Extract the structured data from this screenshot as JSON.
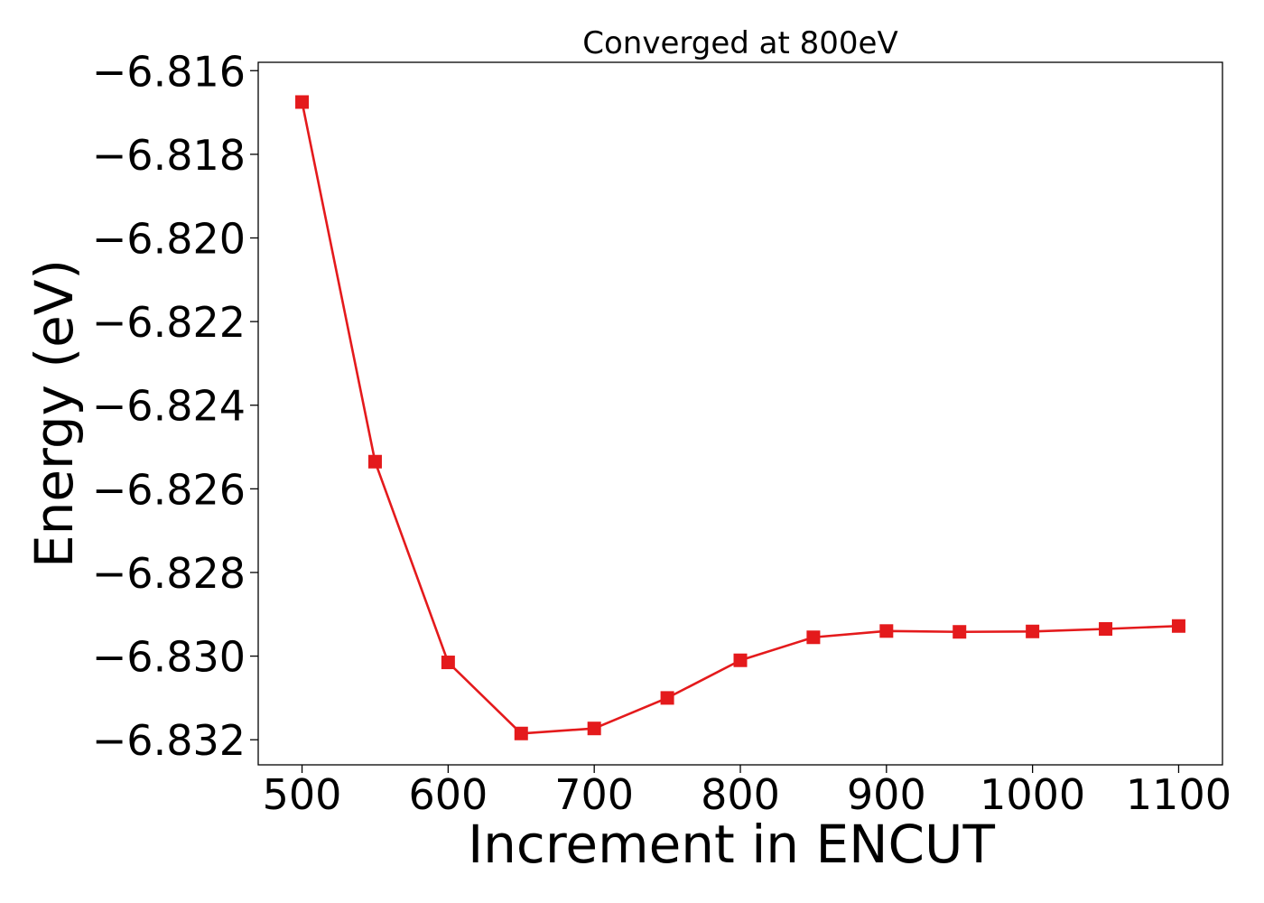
{
  "chart_data": {
    "type": "line",
    "title": "Converged at 800eV",
    "xlabel": "Increment in ENCUT",
    "ylabel": "Energy (eV)",
    "x": [
      500,
      550,
      600,
      650,
      700,
      750,
      800,
      850,
      900,
      950,
      1000,
      1050,
      1100
    ],
    "series": [
      {
        "values": [
          -6.81675,
          -6.82535,
          -6.83015,
          -6.83185,
          -6.83173,
          -6.831,
          -6.8301,
          -6.82955,
          -6.8294,
          -6.82942,
          -6.82941,
          -6.82935,
          -6.82928
        ],
        "color": "#e41a1c",
        "marker": "square"
      }
    ],
    "xlim": [
      470,
      1130
    ],
    "ylim": [
      -6.8326,
      -6.8158
    ],
    "x_ticks": [
      500,
      600,
      700,
      800,
      900,
      1000,
      1100
    ],
    "x_tick_labels": [
      "500",
      "600",
      "700",
      "800",
      "900",
      "1000",
      "1100"
    ],
    "y_ticks": [
      -6.816,
      -6.818,
      -6.82,
      -6.822,
      -6.824,
      -6.826,
      -6.828,
      -6.83,
      -6.832
    ],
    "y_tick_labels": [
      "−6.816",
      "−6.818",
      "−6.820",
      "−6.822",
      "−6.824",
      "−6.826",
      "−6.828",
      "−6.830",
      "−6.832"
    ],
    "grid": false,
    "legend": "none"
  }
}
